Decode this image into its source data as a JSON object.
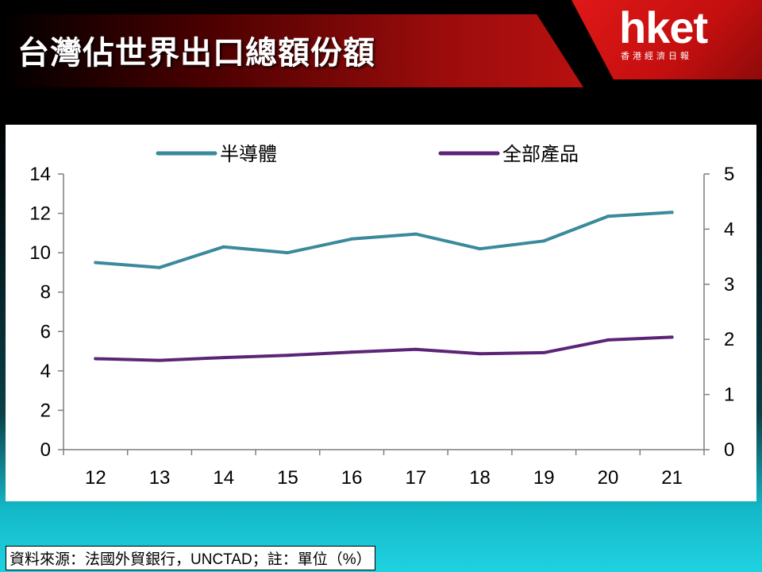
{
  "header": {
    "title": "台灣佔世界出口總額份額"
  },
  "logo": {
    "main": "hket",
    "sub": "香港經濟日報"
  },
  "footer": {
    "source": "資料來源：法國外貿銀行，UNCTAD；註：單位（%）"
  },
  "colors": {
    "semiconductor": "#3a8a9c",
    "all_products": "#5b2477",
    "header_red": "#c40f0f"
  },
  "chart_data": {
    "type": "line",
    "categories": [
      "12",
      "13",
      "14",
      "15",
      "16",
      "17",
      "18",
      "19",
      "20",
      "21"
    ],
    "series": [
      {
        "name": "半導體",
        "axis": "left",
        "values": [
          9.5,
          9.25,
          10.3,
          10.0,
          10.7,
          10.95,
          10.2,
          10.6,
          11.85,
          12.05
        ]
      },
      {
        "name": "全部產品",
        "axis": "right",
        "values": [
          1.65,
          1.62,
          1.67,
          1.71,
          1.77,
          1.82,
          1.74,
          1.76,
          1.99,
          2.04
        ]
      }
    ],
    "left_axis": {
      "ylim": [
        0,
        14
      ],
      "ticks": [
        "0",
        "2",
        "4",
        "6",
        "8",
        "10",
        "12",
        "14"
      ]
    },
    "right_axis": {
      "ylim": [
        0,
        5
      ],
      "ticks": [
        "0",
        "1",
        "2",
        "3",
        "4",
        "5"
      ]
    },
    "legend_position": "top",
    "grid": false
  }
}
